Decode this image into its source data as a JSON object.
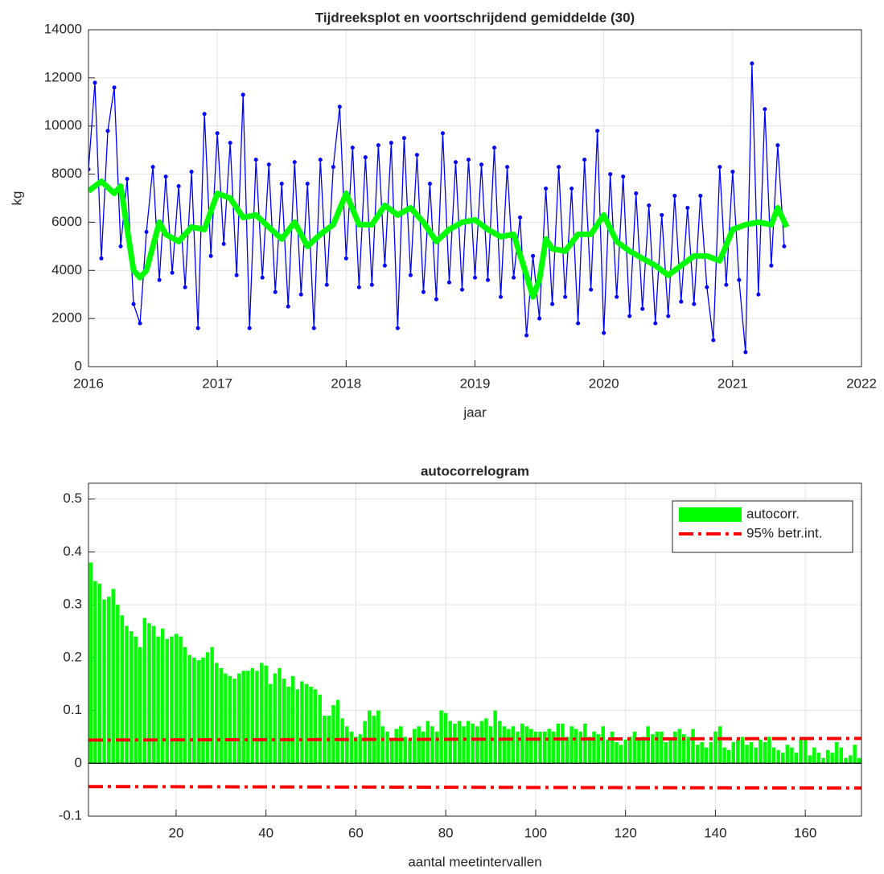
{
  "chart_data": [
    {
      "type": "line",
      "title": "Tijdreeksplot en voortschrijdend gemiddelde (30)",
      "x_label": "jaar",
      "y_label": "kg",
      "xlim": [
        2016,
        2022
      ],
      "xticks": [
        2016,
        2017,
        2018,
        2019,
        2020,
        2021,
        2022
      ],
      "ylim": [
        0,
        14000
      ],
      "yticks": [
        0,
        2000,
        4000,
        6000,
        8000,
        10000,
        12000,
        14000
      ],
      "grid": true,
      "series": [
        {
          "color": "#0000ff",
          "markers": true,
          "x": [
            2016.0,
            2016.05,
            2016.1,
            2016.15,
            2016.2,
            2016.25,
            2016.3,
            2016.35,
            2016.4,
            2016.45,
            2016.5,
            2016.55,
            2016.6,
            2016.65,
            2016.7,
            2016.75,
            2016.8,
            2016.85,
            2016.9,
            2016.95,
            2017.0,
            2017.05,
            2017.1,
            2017.15,
            2017.2,
            2017.25,
            2017.3,
            2017.35,
            2017.4,
            2017.45,
            2017.5,
            2017.55,
            2017.6,
            2017.65,
            2017.7,
            2017.75,
            2017.8,
            2017.85,
            2017.9,
            2017.95,
            2018.0,
            2018.05,
            2018.1,
            2018.15,
            2018.2,
            2018.25,
            2018.3,
            2018.35,
            2018.4,
            2018.45,
            2018.5,
            2018.55,
            2018.6,
            2018.65,
            2018.7,
            2018.75,
            2018.8,
            2018.85,
            2018.9,
            2018.95,
            2019.0,
            2019.05,
            2019.1,
            2019.15,
            2019.2,
            2019.25,
            2019.3,
            2019.35,
            2019.4,
            2019.45,
            2019.5,
            2019.55,
            2019.6,
            2019.65,
            2019.7,
            2019.75,
            2019.8,
            2019.85,
            2019.9,
            2019.95,
            2020.0,
            2020.05,
            2020.1,
            2020.15,
            2020.2,
            2020.25,
            2020.3,
            2020.35,
            2020.4,
            2020.45,
            2020.5,
            2020.55,
            2020.6,
            2020.65,
            2020.7,
            2020.75,
            2020.8,
            2020.85,
            2020.9,
            2020.95,
            2021.0,
            2021.05,
            2021.1,
            2021.15,
            2021.2,
            2021.25,
            2021.3,
            2021.35,
            2021.4
          ],
          "values": [
            8200,
            11800,
            4500,
            9800,
            11600,
            5000,
            7800,
            2600,
            1800,
            5600,
            8300,
            3600,
            7900,
            3900,
            7500,
            3300,
            8100,
            1600,
            10500,
            4600,
            9700,
            5100,
            9300,
            3800,
            11300,
            1600,
            8600,
            3700,
            8400,
            3100,
            7600,
            2500,
            8500,
            3000,
            7600,
            1600,
            8600,
            3400,
            8300,
            10800,
            4500,
            9100,
            3300,
            8700,
            3400,
            9200,
            4200,
            9300,
            1600,
            9500,
            3800,
            8800,
            3100,
            7600,
            2800,
            9700,
            3500,
            8500,
            3200,
            8600,
            3700,
            8400,
            3600,
            9100,
            2900,
            8300,
            3700,
            6200,
            1300,
            4600,
            2000,
            7400,
            2600,
            8300,
            2900,
            7400,
            1800,
            8600,
            3200,
            9800,
            1400,
            8000,
            2900,
            7900,
            2100,
            7200,
            2400,
            6700,
            1800,
            6300,
            2100,
            7100,
            2700,
            6600,
            2600,
            7100,
            3300,
            1100,
            8300,
            3400,
            8100,
            3600,
            600,
            12600,
            3000,
            10700,
            4200,
            9200,
            5000
          ]
        },
        {
          "color": "#00ff00",
          "x": [
            2016.0,
            2016.1,
            2016.2,
            2016.25,
            2016.35,
            2016.4,
            2016.45,
            2016.55,
            2016.6,
            2016.7,
            2016.8,
            2016.9,
            2017.0,
            2017.1,
            2017.2,
            2017.3,
            2017.4,
            2017.5,
            2017.6,
            2017.7,
            2017.8,
            2017.9,
            2018.0,
            2018.1,
            2018.2,
            2018.3,
            2018.4,
            2018.5,
            2018.6,
            2018.7,
            2018.8,
            2018.9,
            2019.0,
            2019.1,
            2019.2,
            2019.3,
            2019.4,
            2019.45,
            2019.5,
            2019.55,
            2019.6,
            2019.7,
            2019.8,
            2019.9,
            2020.0,
            2020.1,
            2020.2,
            2020.3,
            2020.4,
            2020.5,
            2020.6,
            2020.7,
            2020.8,
            2020.9,
            2021.0,
            2021.1,
            2021.2,
            2021.3,
            2021.35,
            2021.42
          ],
          "values": [
            7300,
            7700,
            7200,
            7500,
            4000,
            3700,
            4000,
            6000,
            5500,
            5200,
            5800,
            5700,
            7200,
            7000,
            6200,
            6300,
            5800,
            5300,
            6000,
            5000,
            5500,
            5900,
            7200,
            5900,
            5900,
            6700,
            6300,
            6600,
            6000,
            5200,
            5700,
            6000,
            6100,
            5700,
            5400,
            5500,
            3800,
            2900,
            3600,
            5300,
            4900,
            4800,
            5500,
            5500,
            6300,
            5200,
            4800,
            4500,
            4200,
            3800,
            4200,
            4600,
            4600,
            4400,
            5700,
            5900,
            6000,
            5900,
            6600,
            5800
          ]
        }
      ]
    },
    {
      "type": "bar",
      "title": "autocorrelogram",
      "x_label": "aantal meetintervallen",
      "xlim": [
        0.5,
        172.5
      ],
      "xticks": [
        20,
        40,
        60,
        80,
        100,
        120,
        140,
        160
      ],
      "ylim": [
        -0.1,
        0.53
      ],
      "yticks": [
        -0.1,
        0,
        0.1,
        0.2,
        0.3,
        0.4,
        0.5
      ],
      "grid": true,
      "legend": "upper right",
      "x": [
        1,
        2,
        3,
        4,
        5,
        6,
        7,
        8,
        9,
        10,
        11,
        12,
        13,
        14,
        15,
        16,
        17,
        18,
        19,
        20,
        21,
        22,
        23,
        24,
        25,
        26,
        27,
        28,
        29,
        30,
        31,
        32,
        33,
        34,
        35,
        36,
        37,
        38,
        39,
        40,
        41,
        42,
        43,
        44,
        45,
        46,
        47,
        48,
        49,
        50,
        51,
        52,
        53,
        54,
        55,
        56,
        57,
        58,
        59,
        60,
        61,
        62,
        63,
        64,
        65,
        66,
        67,
        68,
        69,
        70,
        71,
        72,
        73,
        74,
        75,
        76,
        77,
        78,
        79,
        80,
        81,
        82,
        83,
        84,
        85,
        86,
        87,
        88,
        89,
        90,
        91,
        92,
        93,
        94,
        95,
        96,
        97,
        98,
        99,
        100,
        101,
        102,
        103,
        104,
        105,
        106,
        107,
        108,
        109,
        110,
        111,
        112,
        113,
        114,
        115,
        116,
        117,
        118,
        119,
        120,
        121,
        122,
        123,
        124,
        125,
        126,
        127,
        128,
        129,
        130,
        131,
        132,
        133,
        134,
        135,
        136,
        137,
        138,
        139,
        140,
        141,
        142,
        143,
        144,
        145,
        146,
        147,
        148,
        149,
        150,
        151,
        152,
        153,
        154,
        155,
        156,
        157,
        158,
        159,
        160,
        161,
        162,
        163,
        164,
        165,
        166,
        167,
        168,
        169,
        170,
        171,
        172
      ],
      "series": [
        {
          "name": "autocorr.",
          "color": "#00ff00",
          "values": [
            0.38,
            0.345,
            0.34,
            0.31,
            0.315,
            0.33,
            0.3,
            0.28,
            0.26,
            0.25,
            0.24,
            0.22,
            0.275,
            0.265,
            0.26,
            0.24,
            0.255,
            0.235,
            0.24,
            0.245,
            0.24,
            0.22,
            0.205,
            0.2,
            0.195,
            0.2,
            0.21,
            0.22,
            0.19,
            0.18,
            0.17,
            0.165,
            0.16,
            0.17,
            0.175,
            0.175,
            0.18,
            0.175,
            0.19,
            0.185,
            0.15,
            0.17,
            0.18,
            0.16,
            0.145,
            0.165,
            0.14,
            0.155,
            0.15,
            0.145,
            0.14,
            0.13,
            0.09,
            0.09,
            0.11,
            0.12,
            0.085,
            0.07,
            0.06,
            0.05,
            0.055,
            0.08,
            0.1,
            0.09,
            0.1,
            0.07,
            0.06,
            0.045,
            0.065,
            0.07,
            0.05,
            0.045,
            0.065,
            0.07,
            0.06,
            0.08,
            0.07,
            0.06,
            0.1,
            0.095,
            0.08,
            0.075,
            0.08,
            0.07,
            0.08,
            0.075,
            0.07,
            0.08,
            0.085,
            0.07,
            0.1,
            0.08,
            0.07,
            0.065,
            0.07,
            0.06,
            0.075,
            0.07,
            0.065,
            0.06,
            0.06,
            0.06,
            0.065,
            0.06,
            0.075,
            0.075,
            0.05,
            0.07,
            0.065,
            0.06,
            0.075,
            0.05,
            0.06,
            0.055,
            0.07,
            0.045,
            0.06,
            0.04,
            0.035,
            0.045,
            0.05,
            0.06,
            0.045,
            0.05,
            0.07,
            0.055,
            0.06,
            0.06,
            0.04,
            0.045,
            0.06,
            0.065,
            0.055,
            0.05,
            0.065,
            0.035,
            0.04,
            0.03,
            0.04,
            0.06,
            0.07,
            0.03,
            0.025,
            0.04,
            0.045,
            0.05,
            0.035,
            0.04,
            0.03,
            0.045,
            0.04,
            0.05,
            0.03,
            0.025,
            0.02,
            0.035,
            0.03,
            0.02,
            0.045,
            0.05,
            0.015,
            0.03,
            0.02,
            0.01,
            0.025,
            0.02,
            0.04,
            0.03,
            0.01,
            0.015,
            0.035,
            0.01
          ]
        },
        {
          "name": "95% betr.int.",
          "type": "line",
          "color": "#ff0000",
          "x": [
            0.5,
            172.5
          ],
          "values": [
            0.044,
            0.047
          ],
          "lower": [
            -0.044,
            -0.047
          ]
        }
      ]
    }
  ]
}
